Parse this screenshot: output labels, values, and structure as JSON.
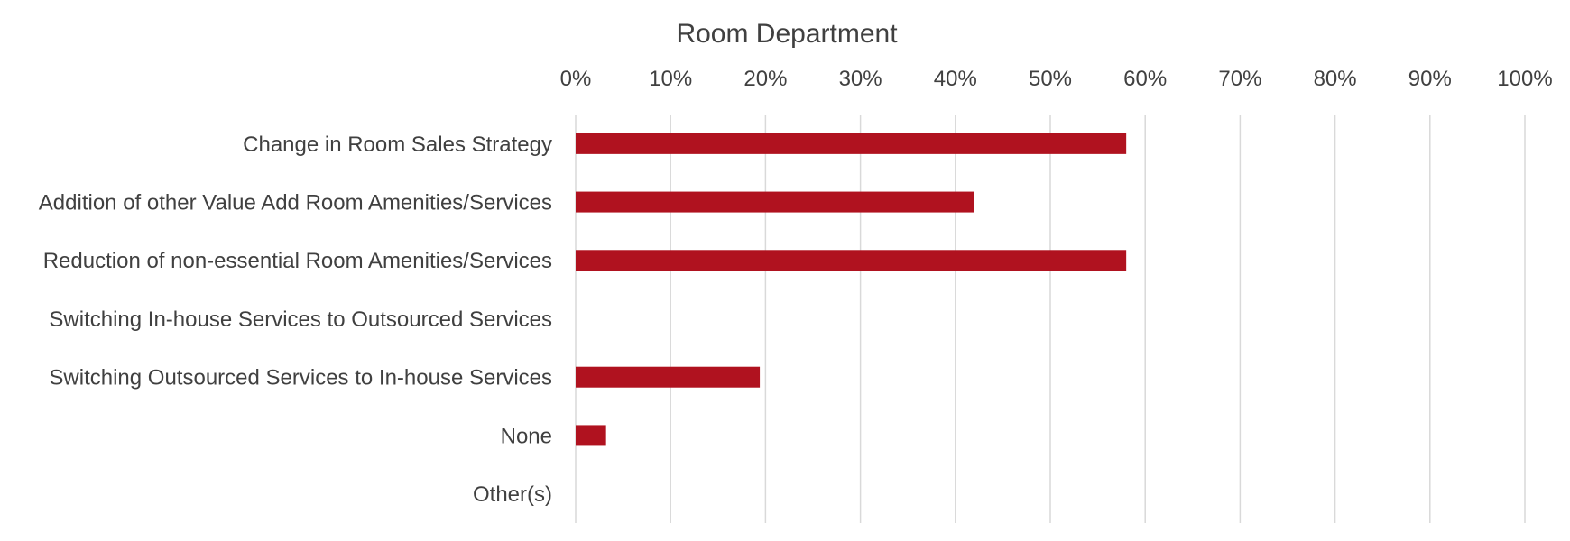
{
  "chart_data": {
    "type": "bar",
    "orientation": "horizontal",
    "title": "Room Department",
    "xlabel": "",
    "ylabel": "",
    "xlim": [
      0,
      100
    ],
    "x_ticks": [
      "0%",
      "10%",
      "20%",
      "30%",
      "40%",
      "50%",
      "60%",
      "70%",
      "80%",
      "90%",
      "100%"
    ],
    "x_axis_position": "top",
    "grid": true,
    "legend": "none",
    "categories": [
      "Change in Room Sales Strategy",
      "Addition of other Value Add Room Amenities/Services",
      "Reduction of non-essential Room Amenities/Services",
      "Switching In-house Services to Outsourced Services",
      "Switching Outsourced Services to In-house Services",
      "None",
      "Other(s)"
    ],
    "values": [
      58,
      42,
      58,
      0,
      19.4,
      3.2,
      0
    ],
    "bar_color": "#b0121f",
    "grid_color": "#d9d9d9",
    "text_color": "#404040"
  }
}
